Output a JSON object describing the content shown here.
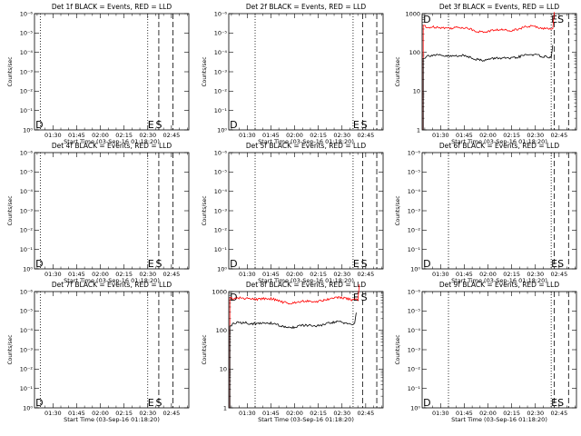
{
  "x_axis": {
    "tick_labels": [
      "01:30",
      "01:45",
      "02:00",
      "02:15",
      "02:30",
      "02:45"
    ],
    "tick_minutes": [
      90,
      105,
      120,
      135,
      150,
      165
    ],
    "minor_step_minutes": 5,
    "range_minutes": [
      78.33,
      176
    ],
    "label": "Start Time (03-Sep-16 01:18:20)"
  },
  "y_axis": {
    "label": "Counts/sec",
    "scale": "log",
    "empty_ticks": [
      "10⁰",
      "10⁻¹",
      "10⁻²",
      "10⁻³",
      "10⁻⁴",
      "10⁻⁵",
      "10⁻⁶"
    ],
    "data_ticks": [
      "1",
      "10",
      "100",
      "1000"
    ]
  },
  "colors": {
    "events": "#000000",
    "lld": "#ff0000",
    "axes": "#000000",
    "background": "#ffffff"
  },
  "chart_data": [
    {
      "type": "line",
      "title": "Det 1f BLACK = Events, RED = LLD",
      "has_data": false,
      "dotted_minutes": [
        82,
        150
      ],
      "dashed_minutes": [
        157,
        166
      ],
      "markers": {
        "D": 79,
        "E": 150,
        "S": 155
      }
    },
    {
      "type": "line",
      "title": "Det 2f BLACK = Events, RED = LLD",
      "has_data": false,
      "dotted_minutes": [
        95,
        157
      ],
      "dashed_minutes": [
        163,
        172
      ],
      "markers": {
        "D": 79,
        "E": 157,
        "S": 162
      }
    },
    {
      "type": "line",
      "title": "Det 3f BLACK = Events, RED = LLD",
      "has_data": true,
      "ylim": [
        1,
        1000
      ],
      "dotted_minutes": [
        95,
        160
      ],
      "dashed_minutes": [
        162,
        171
      ],
      "markers": {
        "D": 79,
        "E": 160,
        "S": 164
      },
      "series": [
        {
          "color": "lld",
          "x_range": [
            79,
            161
          ],
          "level": 400,
          "edge_level": 500
        },
        {
          "color": "events",
          "x_range": [
            79,
            160
          ],
          "level": 75,
          "edge_level": 70
        }
      ]
    },
    {
      "type": "line",
      "title": "Det 4f BLACK = Events, RED = LLD",
      "has_data": false,
      "dotted_minutes": [
        82,
        150
      ],
      "dashed_minutes": [
        157,
        166
      ],
      "markers": {
        "D": 79,
        "E": 150,
        "S": 155
      }
    },
    {
      "type": "line",
      "title": "Det 5f BLACK = Events, RED = LLD",
      "has_data": false,
      "dotted_minutes": [
        95,
        157
      ],
      "dashed_minutes": [
        163,
        172
      ],
      "markers": {
        "D": 79,
        "E": 157,
        "S": 162
      }
    },
    {
      "type": "line",
      "title": "Det 6f BLACK = Events, RED = LLD",
      "has_data": false,
      "dotted_minutes": [
        95,
        160
      ],
      "dashed_minutes": [
        162,
        171
      ],
      "markers": {
        "D": 79,
        "E": 160,
        "S": 164
      }
    },
    {
      "type": "line",
      "title": "Det 7f BLACK = Events, RED = LLD",
      "has_data": false,
      "dotted_minutes": [
        82,
        150
      ],
      "dashed_minutes": [
        157,
        166
      ],
      "markers": {
        "D": 79,
        "E": 150,
        "S": 155
      }
    },
    {
      "type": "line",
      "title": "Det 8f BLACK = Events, RED = LLD",
      "has_data": true,
      "ylim": [
        1,
        1000
      ],
      "dotted_minutes": [
        95,
        157
      ],
      "dashed_minutes": [
        163,
        172
      ],
      "markers": {
        "D": 79,
        "E": 157,
        "S": 162
      },
      "series": [
        {
          "color": "lld",
          "x_range": [
            79,
            160
          ],
          "level": 600,
          "edge_level": 700
        },
        {
          "color": "events",
          "x_range": [
            79,
            158
          ],
          "level": 140,
          "edge_level": 130
        }
      ]
    },
    {
      "type": "line",
      "title": "Det 9f BLACK = Events, RED = LLD",
      "has_data": false,
      "dotted_minutes": [
        95,
        160
      ],
      "dashed_minutes": [
        162,
        171
      ],
      "markers": {
        "D": 79,
        "E": 160,
        "S": 164
      }
    }
  ]
}
